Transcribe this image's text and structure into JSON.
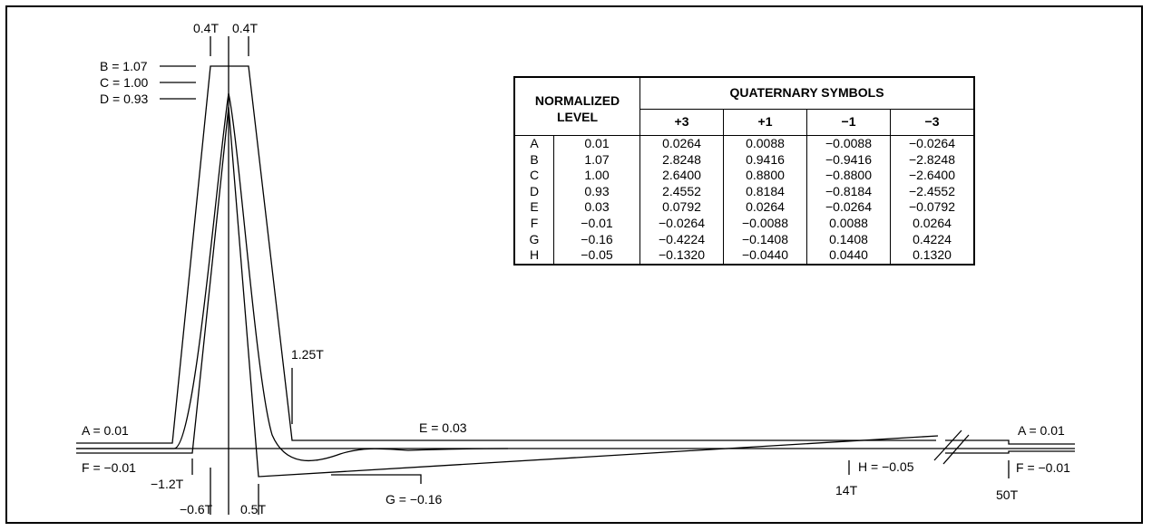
{
  "labels": {
    "top_left_width": "0.4T",
    "top_right_width": "0.4T",
    "b": "B = 1.07",
    "c": "C = 1.00",
    "d": "D = 0.93",
    "a_left": "A = 0.01",
    "f_left": "F = −0.01",
    "m12": "−1.2T",
    "m06": "−0.6T",
    "p05": "0.5T",
    "p125": "1.25T",
    "e": "E = 0.03",
    "g": "G = −0.16",
    "h": "H = −0.05",
    "t14": "14T",
    "t50": "50T",
    "a_right": "A = 0.01",
    "f_right": "F = −0.01"
  },
  "table": {
    "header_level_line1": "NORMALIZED",
    "header_level_line2": "LEVEL",
    "header_symbols": "QUATERNARY SYMBOLS",
    "symbols": [
      "+3",
      "+1",
      "−1",
      "−3"
    ],
    "rows": [
      {
        "id": "A",
        "level": "0.01",
        "v": [
          "0.0264",
          "0.0088",
          "−0.0088",
          "−0.0264"
        ]
      },
      {
        "id": "B",
        "level": "1.07",
        "v": [
          "2.8248",
          "0.9416",
          "−0.9416",
          "−2.8248"
        ]
      },
      {
        "id": "C",
        "level": "1.00",
        "v": [
          "2.6400",
          "0.8800",
          "−0.8800",
          "−2.6400"
        ]
      },
      {
        "id": "D",
        "level": "0.93",
        "v": [
          "2.4552",
          "0.8184",
          "−0.8184",
          "−2.4552"
        ]
      },
      {
        "id": "E",
        "level": "0.03",
        "v": [
          "0.0792",
          "0.0264",
          "−0.0264",
          "−0.0792"
        ]
      },
      {
        "id": "F",
        "level": "−0.01",
        "v": [
          "−0.0264",
          "−0.0088",
          "0.0088",
          "0.0264"
        ]
      },
      {
        "id": "G",
        "level": "−0.16",
        "v": [
          "−0.4224",
          "−0.1408",
          "0.1408",
          "0.4224"
        ]
      },
      {
        "id": "H",
        "level": "−0.05",
        "v": [
          "−0.1320",
          "−0.0440",
          "0.0440",
          "0.1320"
        ]
      }
    ]
  }
}
